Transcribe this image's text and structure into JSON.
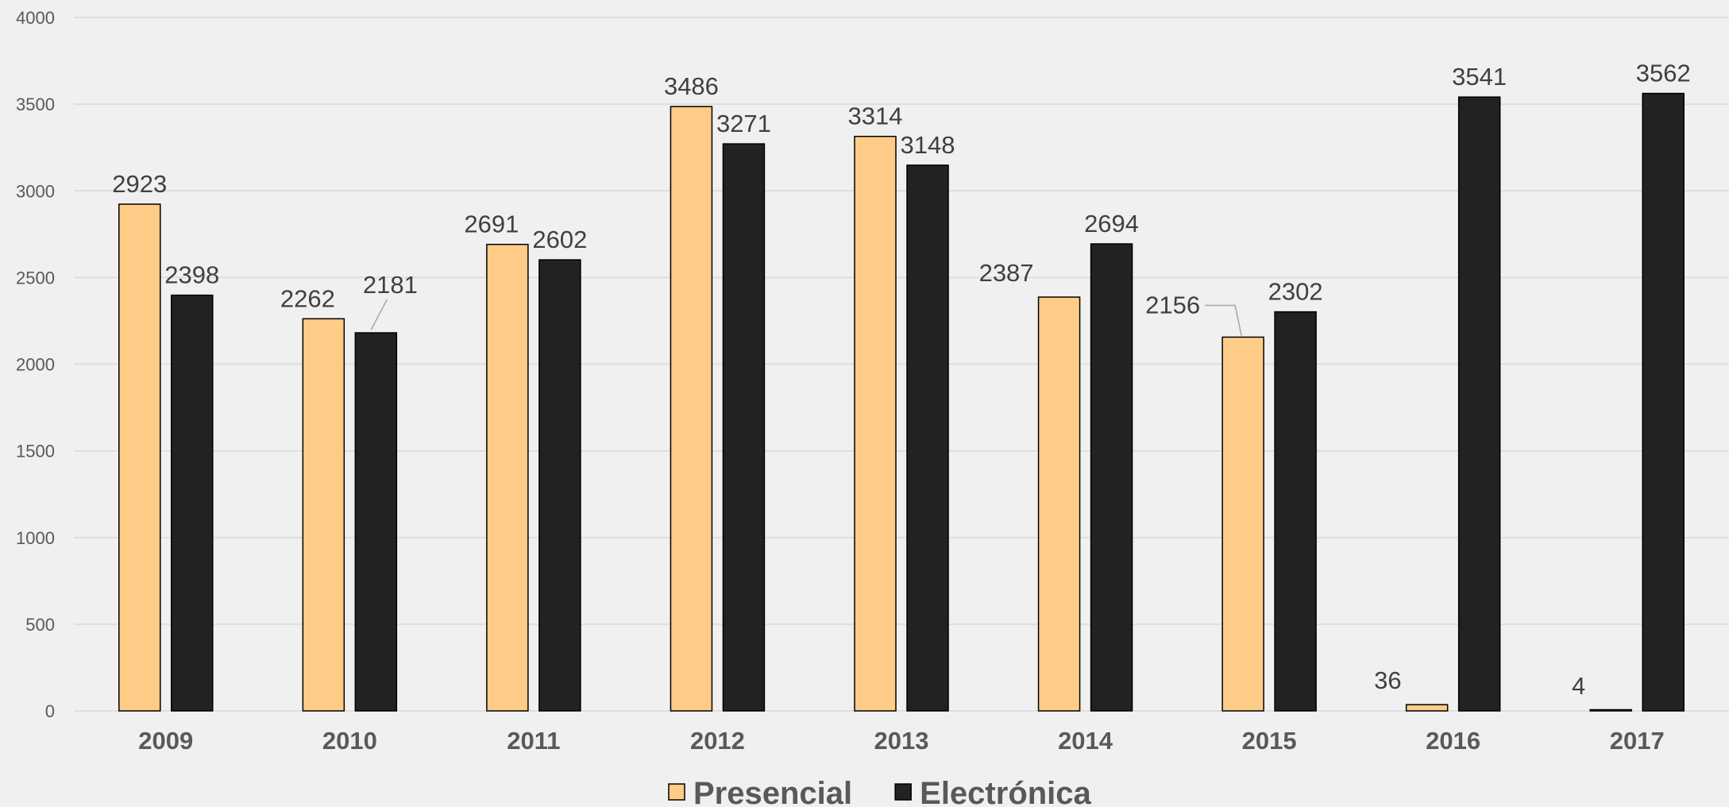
{
  "chart_data": {
    "type": "bar",
    "categories": [
      "2009",
      "2010",
      "2011",
      "2012",
      "2013",
      "2014",
      "2015",
      "2016",
      "2017"
    ],
    "series": [
      {
        "name": "Presencial",
        "color": "#ffcc88",
        "values": [
          2923,
          2262,
          2691,
          3486,
          3314,
          2387,
          2156,
          36,
          4
        ]
      },
      {
        "name": "Electrónica",
        "color": "#222222",
        "values": [
          2398,
          2181,
          2602,
          3271,
          3148,
          2694,
          2302,
          3541,
          3562
        ]
      }
    ],
    "y_ticks": [
      0,
      500,
      1000,
      1500,
      2000,
      2500,
      3000,
      3500,
      4000
    ],
    "ylim": [
      0,
      4000
    ],
    "grid": true,
    "legend_position": "bottom",
    "data_labels": true,
    "title": "",
    "xlabel": "",
    "ylabel": ""
  }
}
